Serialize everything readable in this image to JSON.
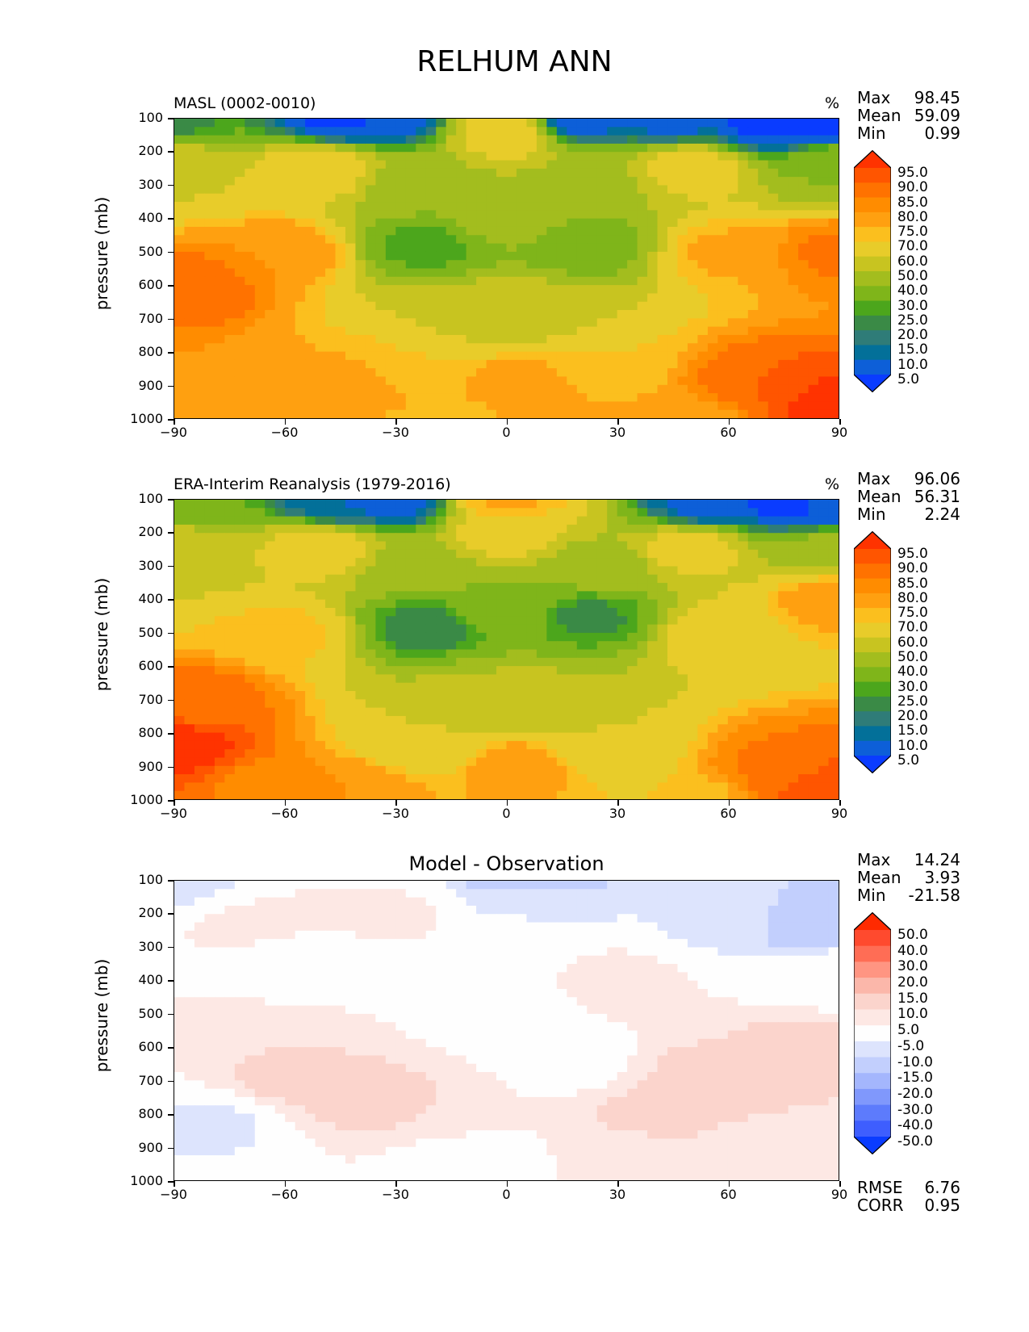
{
  "title": "RELHUM ANN",
  "chart_data": [
    {
      "type": "heatmap",
      "subtitle": "MASL (0002-0010)",
      "units": "%",
      "ylabel": "pressure (mb)",
      "xlabel": "",
      "xlim": [
        -90,
        90
      ],
      "ylim": [
        1000,
        100
      ],
      "xticks": [
        "−90",
        "−60",
        "−30",
        "0",
        "30",
        "60",
        "90"
      ],
      "yticks": [
        "100",
        "200",
        "300",
        "400",
        "500",
        "600",
        "700",
        "800",
        "900",
        "1000"
      ],
      "stats": {
        "Max": "98.45",
        "Mean": "59.09",
        "Min": "0.99"
      },
      "colorbar": {
        "levels": [
          "95.0",
          "90.0",
          "85.0",
          "80.0",
          "75.0",
          "70.0",
          "60.0",
          "50.0",
          "40.0",
          "30.0",
          "25.0",
          "20.0",
          "15.0",
          "10.0",
          "5.0"
        ],
        "colors": [
          "#ff3300",
          "#ff5500",
          "#ff7200",
          "#ff8c00",
          "#ffa010",
          "#fbbf1e",
          "#e8cc2a",
          "#c8c420",
          "#a3bd1e",
          "#7fb51a",
          "#4ca61c",
          "#3a8a46",
          "#2f7c78",
          "#037099",
          "#0d5fd8",
          "#0a3cff"
        ]
      },
      "fields": [
        {
          "x": 18,
          "y": 100,
          "v": 5
        },
        {
          "x": -30,
          "y": 100,
          "v": 8
        },
        {
          "x": -45,
          "y": 100,
          "v": 4
        },
        {
          "x": 0,
          "y": 100,
          "v": 62
        },
        {
          "x": 90,
          "y": 100,
          "v": 2
        },
        {
          "x": 70,
          "y": 120,
          "v": 4
        },
        {
          "x": -90,
          "y": 100,
          "v": 24
        },
        {
          "x": 45,
          "y": 100,
          "v": 8
        },
        {
          "x": 90,
          "y": 250,
          "v": 40
        },
        {
          "x": -90,
          "y": 250,
          "v": 60
        },
        {
          "x": -22,
          "y": 480,
          "v": 28
        },
        {
          "x": 22,
          "y": 480,
          "v": 34
        },
        {
          "x": 0,
          "y": 400,
          "v": 45
        },
        {
          "x": 0,
          "y": 150,
          "v": 66
        },
        {
          "x": -25,
          "y": 300,
          "v": 45
        },
        {
          "x": 25,
          "y": 300,
          "v": 48
        },
        {
          "x": -60,
          "y": 500,
          "v": 80
        },
        {
          "x": 60,
          "y": 500,
          "v": 76
        },
        {
          "x": -88,
          "y": 600,
          "v": 90
        },
        {
          "x": 88,
          "y": 950,
          "v": 98
        },
        {
          "x": 70,
          "y": 900,
          "v": 90
        },
        {
          "x": 5,
          "y": 900,
          "v": 80
        },
        {
          "x": -25,
          "y": 850,
          "v": 70
        },
        {
          "x": 25,
          "y": 850,
          "v": 70
        },
        {
          "x": -70,
          "y": 900,
          "v": 80
        },
        {
          "x": 50,
          "y": 1000,
          "v": 78
        },
        {
          "x": -15,
          "y": 1000,
          "v": 74
        },
        {
          "x": 90,
          "y": 500,
          "v": 86
        },
        {
          "x": -40,
          "y": 900,
          "v": 78
        },
        {
          "x": -50,
          "y": 250,
          "v": 70
        },
        {
          "x": 50,
          "y": 250,
          "v": 66
        },
        {
          "x": -8,
          "y": 700,
          "v": 58
        },
        {
          "x": 8,
          "y": 700,
          "v": 58
        }
      ]
    },
    {
      "type": "heatmap",
      "subtitle": "ERA-Interim Reanalysis (1979-2016)",
      "units": "%",
      "ylabel": "pressure (mb)",
      "xlabel": "",
      "xlim": [
        -90,
        90
      ],
      "ylim": [
        1000,
        100
      ],
      "xticks": [
        "−90",
        "−60",
        "−30",
        "0",
        "30",
        "60",
        "90"
      ],
      "yticks": [
        "100",
        "200",
        "300",
        "400",
        "500",
        "600",
        "700",
        "800",
        "900",
        "1000"
      ],
      "stats": {
        "Max": "96.06",
        "Mean": "56.31",
        "Min": "2.24"
      },
      "colorbar": {
        "levels": [
          "95.0",
          "90.0",
          "85.0",
          "80.0",
          "75.0",
          "70.0",
          "60.0",
          "50.0",
          "40.0",
          "30.0",
          "25.0",
          "20.0",
          "15.0",
          "10.0",
          "5.0"
        ],
        "colors": [
          "#ff3300",
          "#ff5500",
          "#ff7200",
          "#ff8c00",
          "#ffa010",
          "#fbbf1e",
          "#e8cc2a",
          "#c8c420",
          "#a3bd1e",
          "#7fb51a",
          "#4ca61c",
          "#3a8a46",
          "#2f7c78",
          "#037099",
          "#0d5fd8",
          "#0a3cff"
        ]
      },
      "fields": [
        {
          "x": -30,
          "y": 100,
          "v": 6
        },
        {
          "x": -45,
          "y": 100,
          "v": 10
        },
        {
          "x": 75,
          "y": 100,
          "v": 3
        },
        {
          "x": 55,
          "y": 110,
          "v": 8
        },
        {
          "x": 0,
          "y": 100,
          "v": 76
        },
        {
          "x": -90,
          "y": 100,
          "v": 30
        },
        {
          "x": 90,
          "y": 120,
          "v": 6
        },
        {
          "x": 0,
          "y": 200,
          "v": 64
        },
        {
          "x": -90,
          "y": 250,
          "v": 56
        },
        {
          "x": 90,
          "y": 250,
          "v": 45
        },
        {
          "x": -22,
          "y": 480,
          "v": 22
        },
        {
          "x": 22,
          "y": 450,
          "v": 24
        },
        {
          "x": 0,
          "y": 420,
          "v": 38
        },
        {
          "x": -25,
          "y": 300,
          "v": 45
        },
        {
          "x": 25,
          "y": 300,
          "v": 45
        },
        {
          "x": -60,
          "y": 500,
          "v": 72
        },
        {
          "x": 60,
          "y": 500,
          "v": 68
        },
        {
          "x": -89,
          "y": 850,
          "v": 98
        },
        {
          "x": -85,
          "y": 700,
          "v": 88
        },
        {
          "x": 88,
          "y": 950,
          "v": 94
        },
        {
          "x": 75,
          "y": 900,
          "v": 86
        },
        {
          "x": 90,
          "y": 400,
          "v": 80
        },
        {
          "x": 5,
          "y": 900,
          "v": 80
        },
        {
          "x": -25,
          "y": 850,
          "v": 62
        },
        {
          "x": 25,
          "y": 850,
          "v": 60
        },
        {
          "x": -65,
          "y": 950,
          "v": 84
        },
        {
          "x": -40,
          "y": 950,
          "v": 80
        },
        {
          "x": 45,
          "y": 1000,
          "v": 70
        },
        {
          "x": -50,
          "y": 250,
          "v": 66
        },
        {
          "x": 50,
          "y": 250,
          "v": 64
        },
        {
          "x": -8,
          "y": 700,
          "v": 52
        },
        {
          "x": 8,
          "y": 700,
          "v": 52
        }
      ]
    },
    {
      "type": "heatmap",
      "title": "Model - Observation",
      "ylabel": "pressure (mb)",
      "xlabel": "",
      "xlim": [
        -90,
        90
      ],
      "ylim": [
        1000,
        100
      ],
      "xticks": [
        "−90",
        "−60",
        "−30",
        "0",
        "30",
        "60",
        "90"
      ],
      "yticks": [
        "100",
        "200",
        "300",
        "400",
        "500",
        "600",
        "700",
        "800",
        "900",
        "1000"
      ],
      "stats": {
        "Max": "14.24",
        "Mean": "3.93",
        "Min": "-21.58"
      },
      "errstats": {
        "RMSE": "6.76",
        "CORR": "0.95"
      },
      "colorbar": {
        "levels": [
          "50.0",
          "40.0",
          "30.0",
          "20.0",
          "15.0",
          "10.0",
          "5.0",
          "-5.0",
          "-10.0",
          "-15.0",
          "-20.0",
          "-30.0",
          "-40.0",
          "-50.0"
        ],
        "colors": [
          "#ff2a00",
          "#ff4a2e",
          "#ff6d55",
          "#ff9582",
          "#fbb7aa",
          "#fbd4cc",
          "#fde8e4",
          "#fefefe",
          "#dde4fd",
          "#c2cffd",
          "#a4b6fd",
          "#8098fc",
          "#5d7bfc",
          "#3e5efe",
          "#0a3cff"
        ]
      },
      "fields": [
        {
          "x": 0,
          "y": 500,
          "v": 2
        },
        {
          "x": -60,
          "y": 300,
          "v": 1
        },
        {
          "x": -88,
          "y": 100,
          "v": -6
        },
        {
          "x": 5,
          "y": 100,
          "v": -14
        },
        {
          "x": 5,
          "y": 130,
          "v": -8
        },
        {
          "x": 80,
          "y": 230,
          "v": -13
        },
        {
          "x": 60,
          "y": 220,
          "v": -6
        },
        {
          "x": -80,
          "y": 830,
          "v": -6
        },
        {
          "x": -65,
          "y": 250,
          "v": 10
        },
        {
          "x": -60,
          "y": 700,
          "v": 11
        },
        {
          "x": -40,
          "y": 750,
          "v": 12
        },
        {
          "x": -20,
          "y": 780,
          "v": 10
        },
        {
          "x": 55,
          "y": 700,
          "v": 12
        },
        {
          "x": 80,
          "y": 600,
          "v": 11
        },
        {
          "x": 40,
          "y": 800,
          "v": 11
        },
        {
          "x": -30,
          "y": 200,
          "v": 6
        },
        {
          "x": 30,
          "y": 400,
          "v": 7
        },
        {
          "x": -85,
          "y": 520,
          "v": 8
        },
        {
          "x": 30,
          "y": 950,
          "v": 6
        },
        {
          "x": 70,
          "y": 950,
          "v": 7
        },
        {
          "x": -10,
          "y": 950,
          "v": 1
        },
        {
          "x": 15,
          "y": 650,
          "v": 2
        },
        {
          "x": -85,
          "y": 400,
          "v": 2
        },
        {
          "x": 0,
          "y": 300,
          "v": 2
        },
        {
          "x": 90,
          "y": 400,
          "v": 3
        }
      ]
    }
  ]
}
